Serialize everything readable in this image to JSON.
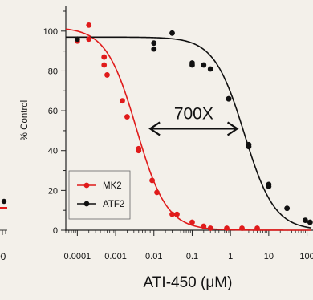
{
  "chart_data": {
    "type": "scatter",
    "xlabel": "ATI-450 (μM)",
    "ylabel": "% Control",
    "x_scale": "log",
    "xlim": [
      5e-05,
      130
    ],
    "ylim": [
      0,
      110
    ],
    "x_ticks": [
      0.0001,
      0.001,
      0.01,
      0.1,
      1,
      10,
      100
    ],
    "x_tick_labels": [
      "0.0001",
      "0.001",
      "0.01",
      "0.1",
      "1",
      "10",
      "100"
    ],
    "y_ticks": [
      0,
      20,
      40,
      60,
      80,
      100
    ],
    "y_tick_labels": [
      "0",
      "20",
      "40",
      "60",
      "80",
      "100"
    ],
    "legend_position": "lower-left",
    "annotation": {
      "text": "700X",
      "from_x": 0.008,
      "to_x": 1.5,
      "y": 51
    },
    "series": [
      {
        "name": "MK2",
        "color": "#e01b1b",
        "ic50": 0.0035,
        "top": 102,
        "bottom": 0,
        "hill": 1.1,
        "points": [
          {
            "x": 0.0001,
            "y": 95
          },
          {
            "x": 0.0002,
            "y": 96
          },
          {
            "x": 0.0002,
            "y": 103
          },
          {
            "x": 0.0005,
            "y": 87
          },
          {
            "x": 0.0005,
            "y": 83
          },
          {
            "x": 0.0006,
            "y": 78
          },
          {
            "x": 0.0015,
            "y": 65
          },
          {
            "x": 0.002,
            "y": 57
          },
          {
            "x": 0.004,
            "y": 40
          },
          {
            "x": 0.004,
            "y": 41
          },
          {
            "x": 0.009,
            "y": 25
          },
          {
            "x": 0.012,
            "y": 19
          },
          {
            "x": 0.03,
            "y": 8
          },
          {
            "x": 0.04,
            "y": 8
          },
          {
            "x": 0.1,
            "y": 4
          },
          {
            "x": 0.2,
            "y": 2
          },
          {
            "x": 0.3,
            "y": 1
          },
          {
            "x": 0.8,
            "y": 1
          },
          {
            "x": 2,
            "y": 1
          },
          {
            "x": 5,
            "y": 1
          }
        ]
      },
      {
        "name": "ATF2",
        "color": "#111111",
        "ic50": 2.3,
        "top": 97,
        "bottom": 0,
        "hill": 1.1,
        "points": [
          {
            "x": 0.0001,
            "y": 96
          },
          {
            "x": 0.01,
            "y": 94
          },
          {
            "x": 0.01,
            "y": 91
          },
          {
            "x": 0.03,
            "y": 99
          },
          {
            "x": 0.1,
            "y": 84
          },
          {
            "x": 0.1,
            "y": 83
          },
          {
            "x": 0.2,
            "y": 83
          },
          {
            "x": 0.3,
            "y": 81
          },
          {
            "x": 0.9,
            "y": 66
          },
          {
            "x": 0.9,
            "y": 66
          },
          {
            "x": 3,
            "y": 43
          },
          {
            "x": 3,
            "y": 42
          },
          {
            "x": 10,
            "y": 23
          },
          {
            "x": 10,
            "y": 22
          },
          {
            "x": 30,
            "y": 11
          },
          {
            "x": 90,
            "y": 5
          },
          {
            "x": 120,
            "y": 4
          }
        ]
      }
    ]
  }
}
